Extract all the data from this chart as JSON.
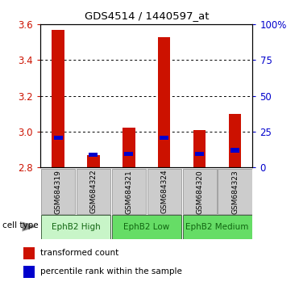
{
  "title": "GDS4514 / 1440597_at",
  "samples": [
    "GSM684319",
    "GSM684322",
    "GSM684321",
    "GSM684324",
    "GSM684320",
    "GSM684323"
  ],
  "red_values": [
    3.57,
    2.87,
    3.02,
    3.53,
    3.01,
    3.1
  ],
  "blue_values": [
    2.965,
    2.87,
    2.875,
    2.965,
    2.875,
    2.895
  ],
  "ymin": 2.8,
  "ymax": 3.6,
  "yticks": [
    2.8,
    3.0,
    3.2,
    3.4,
    3.6
  ],
  "right_yticks": [
    0,
    25,
    50,
    75,
    100
  ],
  "right_ytick_labels": [
    "0",
    "25",
    "50",
    "75",
    "100%"
  ],
  "group_boundaries": [
    {
      "start": 0,
      "end": 2,
      "label": "EphB2 High",
      "color": "#c8f5c8"
    },
    {
      "start": 2,
      "end": 4,
      "label": "EphB2 Low",
      "color": "#66dd66"
    },
    {
      "start": 4,
      "end": 6,
      "label": "EphB2 Medium",
      "color": "#66dd66"
    }
  ],
  "bar_width": 0.35,
  "blue_bar_width": 0.25,
  "blue_bar_height": 0.025,
  "red_color": "#cc1100",
  "blue_color": "#0000cc",
  "background_color": "#ffffff",
  "bar_bg_color": "#cccccc",
  "cell_type_label": "cell type",
  "legend_red": "transformed count",
  "legend_blue": "percentile rank within the sample",
  "left_label_color": "#cc1100",
  "right_label_color": "#0000cc",
  "dotted_yticks": [
    3.0,
    3.2,
    3.4
  ]
}
